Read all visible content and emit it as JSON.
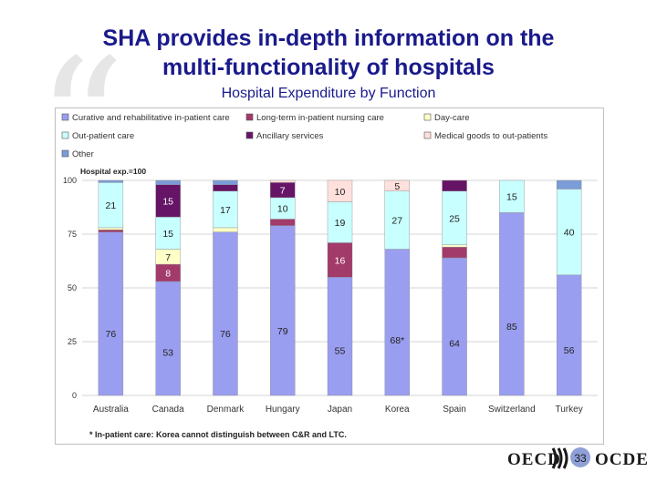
{
  "slide": {
    "title_line1": "SHA provides in-depth information on the",
    "title_line2": "multi-functionality of hospitals",
    "subtitle": "Hospital Expenditure by Function",
    "footnote": "* In-patient care: Korea cannot distinguish between C&R and LTC.",
    "logo_left": "OECD",
    "logo_right": "OCDE",
    "page_number": "33"
  },
  "colors": {
    "curative": "#9a9ef0",
    "ltc": "#a23a6a",
    "daycare": "#ffffc8",
    "outpatient": "#c8ffff",
    "ancillary": "#661466",
    "medical_goods": "#ffe0dc",
    "other": "#7a9cd8"
  },
  "chart_data": {
    "type": "bar",
    "stacked": true,
    "ylabel": "Hospital exp.=100",
    "ylim": [
      0,
      100
    ],
    "yticks": [
      0,
      25,
      50,
      75,
      100
    ],
    "grid": true,
    "legend_position": "top",
    "categories": [
      "Australia",
      "Canada",
      "Denmark",
      "Hungary",
      "Japan",
      "Korea",
      "Spain",
      "Switzerland",
      "Turkey"
    ],
    "series": [
      {
        "key": "curative",
        "name": "Curative and rehabilitative in-patient care",
        "values": [
          76,
          53,
          76,
          79,
          55,
          68,
          64,
          85,
          56
        ],
        "labels": [
          "76",
          "53",
          "76",
          "79",
          "55",
          "68*",
          "64",
          "85",
          "56"
        ]
      },
      {
        "key": "ltc",
        "name": "Long-term in-patient nursing care",
        "values": [
          1,
          8,
          0,
          3,
          16,
          0,
          5,
          0,
          0
        ],
        "labels": [
          "",
          "8",
          "",
          "",
          "16",
          "",
          "",
          "",
          ""
        ]
      },
      {
        "key": "daycare",
        "name": "Day-care",
        "values": [
          1,
          7,
          2,
          0,
          0,
          0,
          1,
          0,
          0
        ],
        "labels": [
          "",
          "7",
          "",
          "",
          "",
          "",
          "",
          "",
          ""
        ]
      },
      {
        "key": "outpatient",
        "name": "Out-patient care",
        "values": [
          21,
          15,
          17,
          10,
          19,
          27,
          25,
          15,
          40
        ],
        "labels": [
          "21",
          "15",
          "17",
          "10",
          "19",
          "27",
          "25",
          "15",
          "40"
        ]
      },
      {
        "key": "ancillary",
        "name": "Ancillary services",
        "values": [
          0,
          15,
          3,
          7,
          0,
          0,
          5,
          0,
          0
        ],
        "labels": [
          "",
          "15",
          "",
          "7",
          "",
          "",
          "",
          "",
          ""
        ]
      },
      {
        "key": "medical_goods",
        "name": "Medical goods to out-patients",
        "values": [
          0,
          0,
          0,
          1,
          10,
          5,
          0,
          0,
          0
        ],
        "labels": [
          "",
          "",
          "",
          "",
          "10",
          "5",
          "",
          "",
          ""
        ]
      },
      {
        "key": "other",
        "name": "Other",
        "values": [
          1,
          2,
          2,
          0,
          0,
          0,
          0,
          0,
          4
        ],
        "labels": [
          "",
          "",
          "",
          "",
          "",
          "",
          "",
          "",
          ""
        ]
      }
    ]
  }
}
